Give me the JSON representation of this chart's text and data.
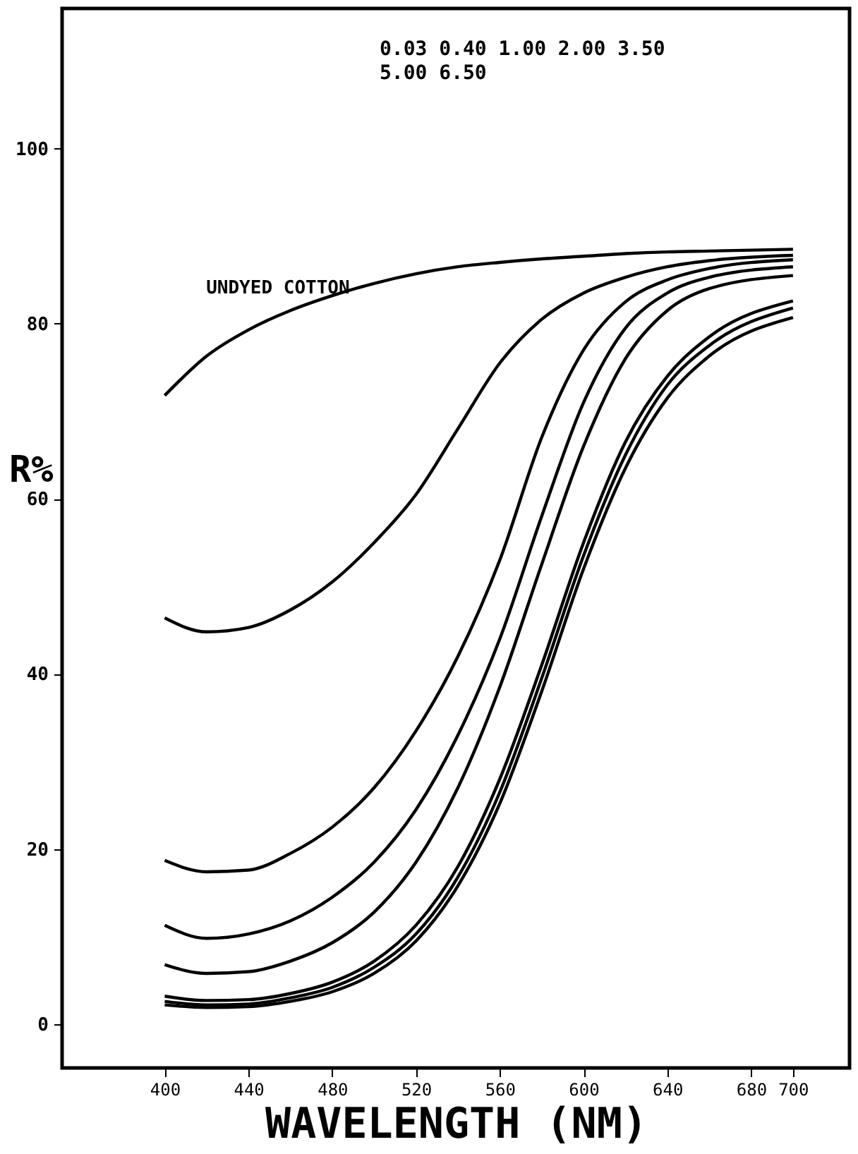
{
  "chart_data": {
    "type": "line",
    "subtitle": [
      "0.03 0.40 1.00 2.00 3.50",
      "5.00 6.50"
    ],
    "xlabel": "WAVELENGTH (NM)",
    "ylabel": "R%",
    "x": [
      400,
      420,
      440,
      460,
      480,
      500,
      520,
      540,
      560,
      580,
      600,
      620,
      640,
      660,
      700
    ],
    "series": [
      {
        "name": "UNDYED COTTON",
        "color": "#000000",
        "values": [
          71.8,
          76.3,
          79.3,
          81.5,
          83.2,
          84.6,
          85.7,
          86.5,
          87.0,
          87.4,
          87.7,
          88.0,
          88.2,
          88.3,
          88.5
        ]
      },
      {
        "color": "#000000",
        "values": [
          46.4,
          44.8,
          45.3,
          47.3,
          50.5,
          55.0,
          60.5,
          68.0,
          75.5,
          80.5,
          83.5,
          85.3,
          86.5,
          87.2,
          87.8
        ]
      },
      {
        "color": "#000000",
        "values": [
          18.7,
          17.4,
          17.6,
          19.5,
          22.5,
          27.0,
          33.5,
          42.0,
          53.0,
          67.0,
          77.0,
          82.5,
          85.0,
          86.3,
          87.3
        ]
      },
      {
        "color": "#000000",
        "values": [
          11.3,
          9.8,
          10.3,
          11.8,
          14.5,
          18.5,
          24.5,
          33.0,
          44.0,
          58.0,
          71.0,
          79.5,
          83.5,
          85.3,
          86.5
        ]
      },
      {
        "color": "#000000",
        "values": [
          6.8,
          5.8,
          6.0,
          7.2,
          9.3,
          12.8,
          18.5,
          27.0,
          38.5,
          52.5,
          66.0,
          76.0,
          81.5,
          84.0,
          85.5
        ]
      },
      {
        "color": "#000000",
        "values": [
          3.2,
          2.7,
          2.8,
          3.5,
          4.8,
          7.2,
          11.3,
          18.0,
          28.0,
          41.0,
          55.0,
          66.5,
          74.0,
          78.5,
          82.6
        ]
      },
      {
        "color": "#000000",
        "values": [
          2.6,
          2.2,
          2.3,
          3.0,
          4.2,
          6.5,
          10.3,
          16.8,
          26.5,
          39.5,
          53.5,
          65.0,
          73.0,
          77.5,
          81.8
        ]
      },
      {
        "color": "#000000",
        "values": [
          2.2,
          1.9,
          2.0,
          2.6,
          3.7,
          5.8,
          9.5,
          15.8,
          25.2,
          38.0,
          52.0,
          63.5,
          71.5,
          76.3,
          80.7
        ]
      }
    ],
    "xlim": [
      351,
      727
    ],
    "ylim": [
      -5,
      116
    ],
    "xticks": [
      400,
      440,
      480,
      520,
      560,
      600,
      640,
      680,
      700
    ],
    "yticks": [
      0,
      20,
      40,
      60,
      80,
      100
    ],
    "grid": false,
    "legend": false,
    "line_style": "solid",
    "marker": "none"
  }
}
